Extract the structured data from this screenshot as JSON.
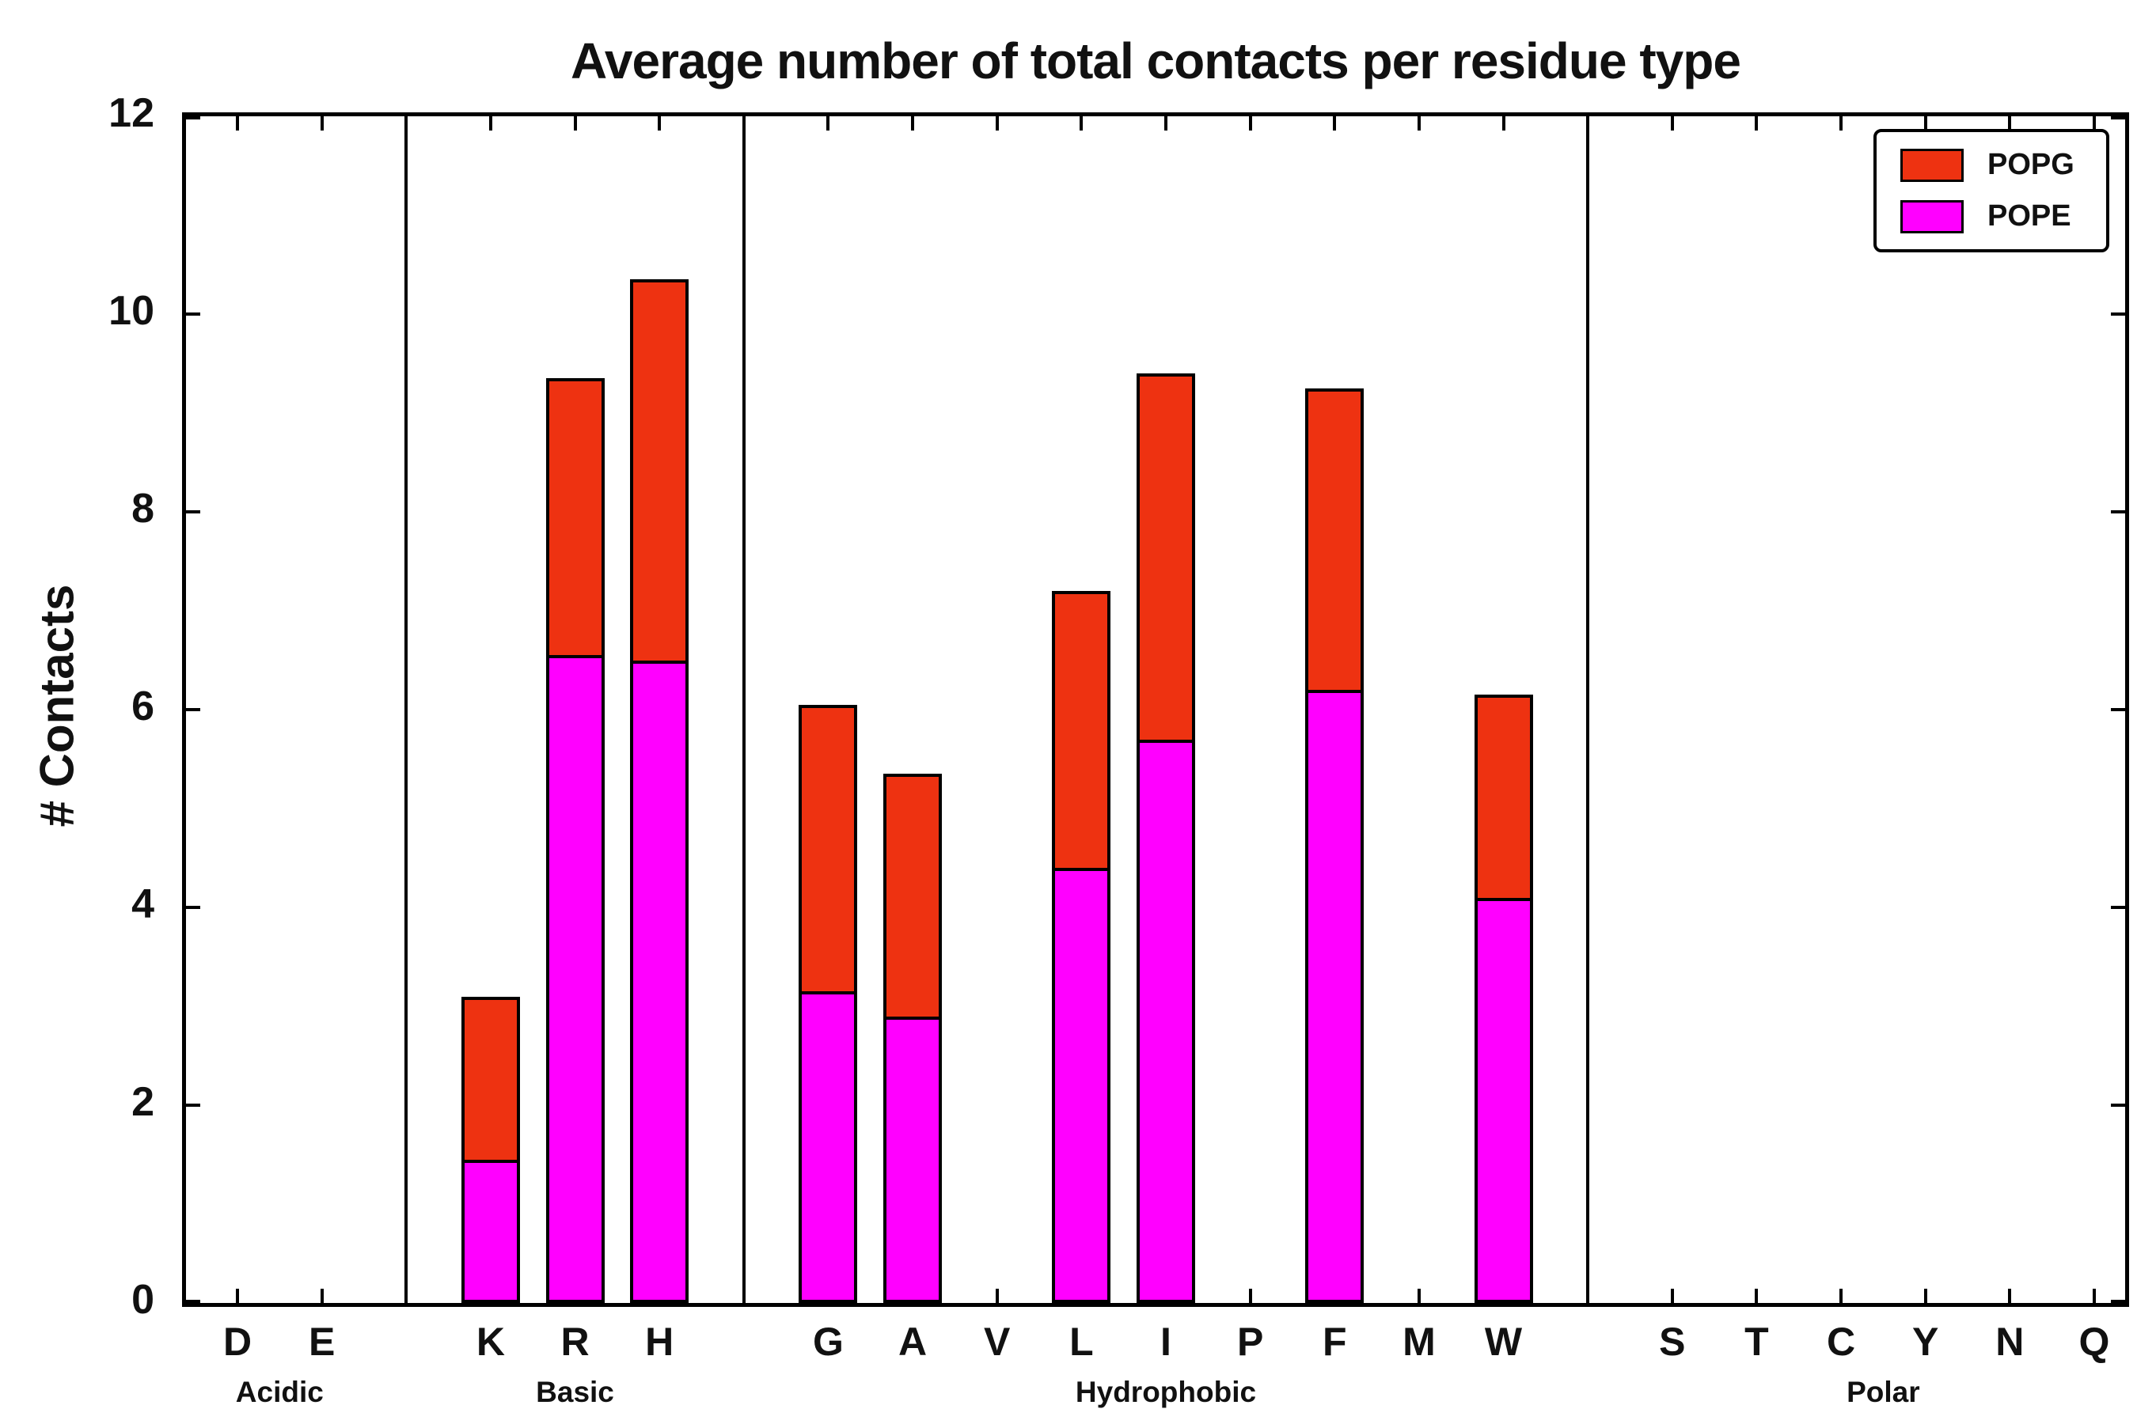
{
  "title": "Average number of total contacts per residue type",
  "ylabel": "# Contacts",
  "legend": {
    "items": [
      {
        "label": "POPG",
        "color": "#EE3211"
      },
      {
        "label": "POPE",
        "color": "#FF00FF"
      }
    ]
  },
  "chart_data": {
    "type": "bar",
    "stacked": true,
    "title": "Average number of total contacts per residue type",
    "xlabel": "",
    "ylabel": "# Contacts",
    "ylim": [
      0,
      12
    ],
    "yticks": [
      0,
      2,
      4,
      6,
      8,
      10,
      12
    ],
    "grid": false,
    "legend_position": "top-right",
    "groups": [
      {
        "label": "Acidic",
        "categories": [
          "D",
          "E"
        ]
      },
      {
        "label": "Basic",
        "categories": [
          "K",
          "R",
          "H"
        ]
      },
      {
        "label": "Hydrophobic",
        "categories": [
          "G",
          "A",
          "V",
          "L",
          "I",
          "P",
          "F",
          "M",
          "W"
        ]
      },
      {
        "label": "Polar",
        "categories": [
          "S",
          "T",
          "C",
          "Y",
          "N",
          "Q"
        ]
      }
    ],
    "categories": [
      "D",
      "E",
      "K",
      "R",
      "H",
      "G",
      "A",
      "V",
      "L",
      "I",
      "P",
      "F",
      "M",
      "W",
      "S",
      "T",
      "C",
      "Y",
      "N",
      "Q"
    ],
    "series": [
      {
        "name": "POPE",
        "color": "#FF00FF",
        "values": [
          0,
          0,
          1.45,
          6.55,
          6.5,
          3.15,
          2.9,
          0,
          4.4,
          5.7,
          0,
          6.2,
          0,
          4.1,
          0,
          0,
          0,
          0,
          0,
          0
        ]
      },
      {
        "name": "POPG",
        "color": "#EE3211",
        "values": [
          0,
          0,
          1.65,
          2.8,
          3.85,
          2.9,
          2.45,
          0,
          2.8,
          3.7,
          0,
          3.05,
          0,
          2.05,
          0,
          0,
          0,
          0,
          0,
          0
        ]
      }
    ],
    "totals": [
      0,
      0,
      3.1,
      9.35,
      10.35,
      6.05,
      5.35,
      0,
      7.2,
      9.4,
      0,
      9.25,
      0,
      6.15,
      0,
      0,
      0,
      0,
      0,
      0
    ]
  }
}
